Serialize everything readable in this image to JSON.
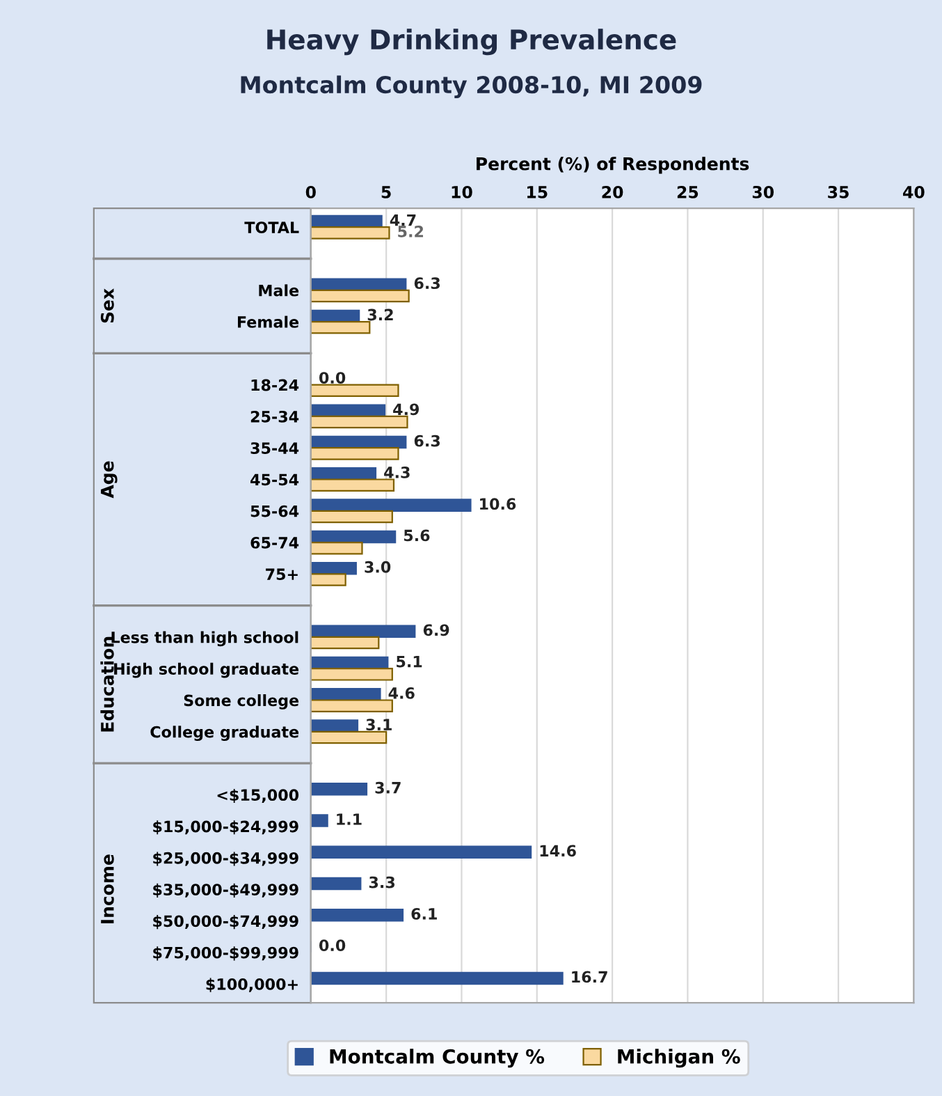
{
  "chart_data": {
    "type": "bar",
    "orientation": "horizontal",
    "title": "Heavy Drinking Prevalence",
    "subtitle": "Montcalm County 2008-10, MI 2009",
    "xlabel": "Percent (%) of Respondents",
    "categories": [
      "TOTAL",
      null,
      "Male",
      "Female",
      null,
      "18-24",
      "25-34",
      "35-44",
      "45-54",
      "55-64",
      "65-74",
      "75+",
      null,
      "Less than high school",
      "High school graduate",
      "Some college",
      "College graduate",
      null,
      "<$15,000",
      "$15,000-$24,999",
      "$25,000-$34,999",
      "$35,000-$49,999",
      "$50,000-$74,999",
      "$75,000-$99,999",
      "$100,000+"
    ],
    "series": [
      {
        "name": "Montcalm County %",
        "color": "#2f5597",
        "values": [
          4.7,
          null,
          6.3,
          3.2,
          null,
          0.0,
          4.9,
          6.3,
          4.3,
          10.6,
          5.6,
          3.0,
          null,
          6.9,
          5.1,
          4.6,
          3.1,
          null,
          3.7,
          1.1,
          14.6,
          3.3,
          6.1,
          0.0,
          16.7
        ],
        "value_labels": [
          "4.7",
          null,
          "6.3",
          "3.2",
          null,
          "0.0",
          "4.9",
          "6.3",
          "4.3",
          "10.6",
          "5.6",
          "3.0",
          null,
          "6.9",
          "5.1",
          "4.6",
          "3.1",
          null,
          "3.7",
          "1.1",
          "14.6",
          "3.3",
          "6.1",
          "0.0",
          "16.7"
        ]
      },
      {
        "name": "Michigan %",
        "color": "#fad9a0",
        "values": [
          5.2,
          null,
          6.5,
          3.9,
          null,
          5.8,
          6.4,
          5.8,
          5.5,
          5.4,
          3.4,
          2.3,
          null,
          4.5,
          5.4,
          5.4,
          5.0,
          null,
          null,
          null,
          null,
          null,
          null,
          null,
          null
        ],
        "value_labels": [
          "5.2",
          null,
          null,
          null,
          null,
          null,
          null,
          null,
          null,
          null,
          null,
          null,
          null,
          null,
          null,
          null,
          null,
          null,
          null,
          null,
          null,
          null,
          null,
          null,
          null
        ]
      }
    ],
    "annotations": [
      "Sex",
      "Age",
      "Education",
      "Income"
    ],
    "xlim": [
      0,
      40
    ],
    "xticks": [
      0,
      5,
      10,
      15,
      20,
      25,
      30,
      35,
      40
    ],
    "grid": "x",
    "legend": "bottom"
  }
}
